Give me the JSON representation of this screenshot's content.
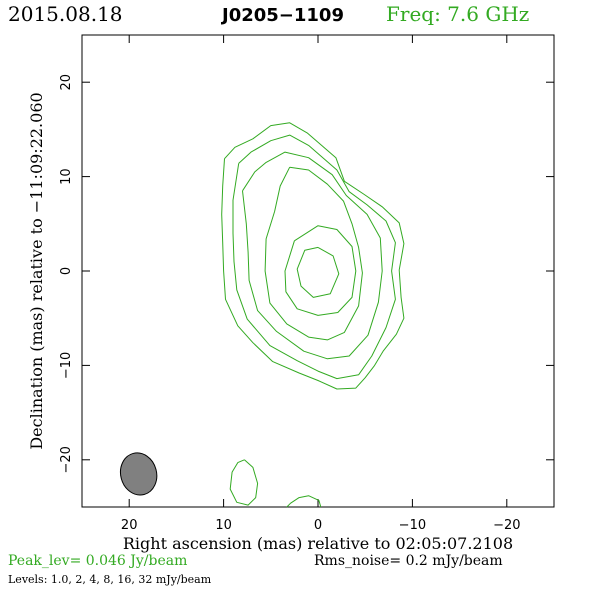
{
  "header": {
    "date": "2015.08.18",
    "source": "J0205−1109",
    "frequency": "Freq: 7.6 GHz"
  },
  "colors": {
    "contour": "#33aa22",
    "beam_fill": "#808080",
    "frame": "#000000"
  },
  "footer": {
    "peak": "Peak_lev=  0.046 Jy/beam",
    "rms": "Rms_noise=   0.2 mJy/beam",
    "levels": "Levels: 1.0,    2,    4,    8,   16,   32 mJy/beam"
  },
  "chart_data": {
    "type": "contour",
    "xlabel": "Right ascension (mas) relative to 02:05:07.2108",
    "ylabel": "Declination (mas) relative to −11:09:22.060",
    "xlim": [
      25,
      -25
    ],
    "ylim": [
      -25,
      25
    ],
    "xticks": [
      20,
      10,
      0,
      -10,
      -20
    ],
    "yticks": [
      20,
      10,
      0,
      -10,
      -20
    ],
    "x_tick_labels": [
      "20",
      "10",
      "0",
      "−10",
      "−20"
    ],
    "y_tick_labels": [
      "20",
      "10",
      "0",
      "−10",
      "−20"
    ],
    "contour_levels_mJy": [
      1.0,
      2,
      4,
      8,
      16,
      32
    ],
    "peak_Jy_per_beam": 0.046,
    "rms_noise_mJy_per_beam": 0.2,
    "beam": {
      "center": [
        19,
        -21.5
      ],
      "major_mas": 4.5,
      "minor_mas": 3.8,
      "position_angle_deg": -15
    },
    "contours": [
      {
        "level_mJy": 1.0,
        "points": [
          [
            9.9,
            11.9
          ],
          [
            8.8,
            13.1
          ],
          [
            6.9,
            14.0
          ],
          [
            5.0,
            15.4
          ],
          [
            3.0,
            15.7
          ],
          [
            1.1,
            14.6
          ],
          [
            -1.9,
            12.0
          ],
          [
            -2.8,
            9.5
          ],
          [
            -4.9,
            8.1
          ],
          [
            -6.8,
            6.8
          ],
          [
            -8.6,
            5.1
          ],
          [
            -9.1,
            2.9
          ],
          [
            -8.6,
            0.1
          ],
          [
            -8.8,
            -2.8
          ],
          [
            -9.1,
            -5.0
          ],
          [
            -8.3,
            -6.7
          ],
          [
            -6.9,
            -8.5
          ],
          [
            -6.0,
            -10.0
          ],
          [
            -5.0,
            -11.3
          ],
          [
            -4.0,
            -12.4
          ],
          [
            -2.0,
            -12.5
          ],
          [
            0.0,
            -11.6
          ],
          [
            2.0,
            -10.8
          ],
          [
            4.8,
            -9.6
          ],
          [
            6.9,
            -7.6
          ],
          [
            8.5,
            -5.8
          ],
          [
            9.8,
            -3.0
          ],
          [
            10.0,
            0.0
          ],
          [
            10.1,
            3.0
          ],
          [
            10.2,
            6.0
          ],
          [
            10.1,
            9.0
          ],
          [
            9.9,
            11.9
          ]
        ]
      },
      {
        "level_mJy": 2,
        "points": [
          [
            8.4,
            11.4
          ],
          [
            7.1,
            12.6
          ],
          [
            5.0,
            13.8
          ],
          [
            3.0,
            14.4
          ],
          [
            1.0,
            13.3
          ],
          [
            -2.0,
            10.7
          ],
          [
            -3.3,
            8.4
          ],
          [
            -5.2,
            7.0
          ],
          [
            -7.2,
            5.3
          ],
          [
            -8.2,
            3.0
          ],
          [
            -7.8,
            0.0
          ],
          [
            -8.2,
            -3.0
          ],
          [
            -7.2,
            -6.0
          ],
          [
            -5.7,
            -9.0
          ],
          [
            -4.3,
            -11.0
          ],
          [
            -2.0,
            -11.4
          ],
          [
            0.0,
            -10.6
          ],
          [
            2.2,
            -9.5
          ],
          [
            5.1,
            -7.9
          ],
          [
            7.5,
            -5.1
          ],
          [
            8.6,
            -2.0
          ],
          [
            8.9,
            1.0
          ],
          [
            9.0,
            4.0
          ],
          [
            9.0,
            7.5
          ],
          [
            8.4,
            11.4
          ]
        ]
      },
      {
        "level_mJy": 4,
        "points": [
          [
            8.0,
            8.5
          ],
          [
            6.7,
            10.5
          ],
          [
            5.5,
            11.5
          ],
          [
            3.5,
            12.6
          ],
          [
            1.0,
            12.0
          ],
          [
            -1.5,
            10.2
          ],
          [
            -3.0,
            8.0
          ],
          [
            -5.2,
            6.0
          ],
          [
            -6.6,
            3.5
          ],
          [
            -6.8,
            0.0
          ],
          [
            -6.4,
            -3.3
          ],
          [
            -5.3,
            -6.8
          ],
          [
            -3.3,
            -9.0
          ],
          [
            -1.0,
            -9.3
          ],
          [
            1.5,
            -8.5
          ],
          [
            4.4,
            -6.4
          ],
          [
            6.4,
            -4.2
          ],
          [
            7.3,
            -1.0
          ],
          [
            7.4,
            2.0
          ],
          [
            7.6,
            5.0
          ],
          [
            8.0,
            8.5
          ]
        ]
      },
      {
        "level_mJy": 8,
        "points": [
          [
            3.0,
            11.0
          ],
          [
            1.0,
            10.7
          ],
          [
            -1.0,
            9.2
          ],
          [
            -2.7,
            7.4
          ],
          [
            -3.6,
            5.0
          ],
          [
            -4.3,
            2.5
          ],
          [
            -4.7,
            -0.2
          ],
          [
            -4.3,
            -3.7
          ],
          [
            -2.8,
            -6.5
          ],
          [
            -1.0,
            -7.3
          ],
          [
            1.0,
            -7.0
          ],
          [
            3.3,
            -5.6
          ],
          [
            5.1,
            -3.4
          ],
          [
            5.6,
            0.0
          ],
          [
            5.5,
            3.4
          ],
          [
            4.6,
            6.3
          ],
          [
            4.0,
            9.0
          ],
          [
            3.0,
            11.0
          ]
        ]
      },
      {
        "level_mJy": 16,
        "points": [
          [
            2.5,
            3.2
          ],
          [
            0.0,
            4.8
          ],
          [
            -2.0,
            4.4
          ],
          [
            -3.6,
            2.6
          ],
          [
            -4.0,
            0.0
          ],
          [
            -3.6,
            -2.8
          ],
          [
            -2.1,
            -4.4
          ],
          [
            0.0,
            -4.7
          ],
          [
            2.2,
            -4.0
          ],
          [
            3.4,
            -2.2
          ],
          [
            3.5,
            0.0
          ],
          [
            2.5,
            3.2
          ]
        ]
      },
      {
        "level_mJy": 32,
        "points": [
          [
            0.0,
            2.5
          ],
          [
            -1.6,
            1.6
          ],
          [
            -2.2,
            -0.3
          ],
          [
            -1.3,
            -2.4
          ],
          [
            0.5,
            -2.8
          ],
          [
            1.8,
            -1.6
          ],
          [
            2.2,
            0.2
          ],
          [
            1.4,
            2.2
          ],
          [
            0.0,
            2.5
          ]
        ]
      },
      {
        "level_mJy": 1.0,
        "points": [
          [
            7.8,
            -20.0
          ],
          [
            6.9,
            -20.8
          ],
          [
            6.4,
            -22.5
          ],
          [
            6.6,
            -24.0
          ],
          [
            7.4,
            -24.8
          ],
          [
            8.6,
            -24.5
          ],
          [
            9.3,
            -23.1
          ],
          [
            9.1,
            -21.3
          ],
          [
            8.5,
            -20.3
          ],
          [
            7.8,
            -20.0
          ]
        ]
      },
      {
        "level_mJy": 1.0,
        "points": [
          [
            -0.3,
            -25.0
          ],
          [
            -0.1,
            -24.3
          ],
          [
            1.0,
            -23.8
          ],
          [
            2.0,
            -24.0
          ],
          [
            2.9,
            -24.6
          ],
          [
            3.3,
            -25.0
          ]
        ]
      }
    ]
  }
}
